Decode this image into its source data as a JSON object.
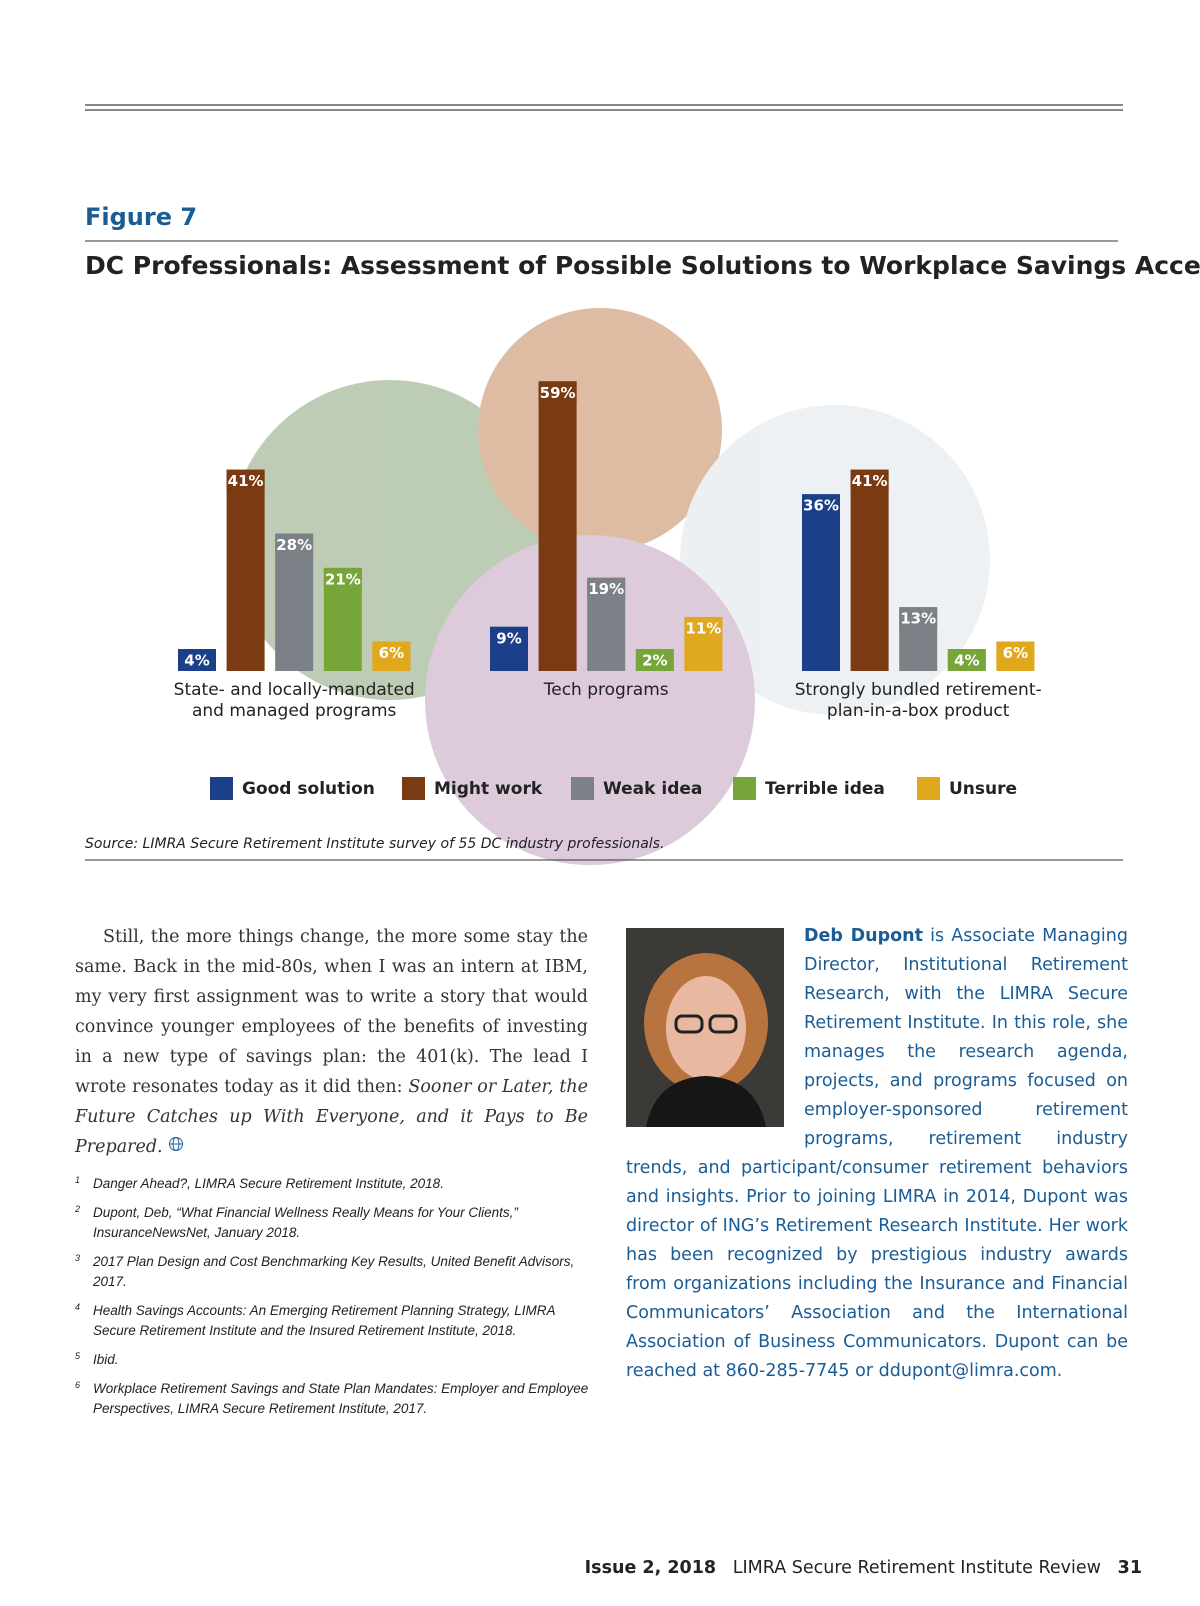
{
  "figure": {
    "label": "Figure 7",
    "source": "Source: LIMRA Secure Retirement Institute survey of 55 DC industry professionals."
  },
  "chart_data": {
    "type": "bar",
    "title": "DC Professionals: Assessment of Possible Solutions to Workplace Savings Access",
    "categories": [
      "State- and locally-mandated and managed programs",
      "Tech programs",
      "Strongly bundled retirement-plan-in-a-box product"
    ],
    "series": [
      {
        "name": "Good solution",
        "color": "#1c3f8a",
        "values": [
          4,
          9,
          36
        ],
        "value_labels": [
          "4%",
          "9%",
          "36%"
        ]
      },
      {
        "name": "Might work",
        "color": "#7a3b12",
        "values": [
          41,
          59,
          41
        ],
        "value_labels": [
          "41%",
          "59%",
          "41%"
        ]
      },
      {
        "name": "Weak idea",
        "color": "#7b8187",
        "values": [
          28,
          19,
          13
        ],
        "value_labels": [
          "28%",
          "19%",
          "13%"
        ]
      },
      {
        "name": "Terrible idea",
        "color": "#76a53a",
        "values": [
          21,
          2,
          4
        ],
        "value_labels": [
          "21%",
          "2%",
          "4%"
        ]
      },
      {
        "name": "Unsure",
        "color": "#e0a81c",
        "values": [
          6,
          11,
          6
        ],
        "value_labels": [
          "6%",
          "11%",
          "6%"
        ]
      }
    ]
  },
  "body": {
    "text": "Still, the more things change, the more some stay the same. Back in the mid-80s, when I was an intern at IBM, my very first assignment was to write a story that would convince younger employees of the benefits of investing in a new type of savings plan: the 401(k). The lead I wrote resonates today as it did then:",
    "quote": "Sooner or Later, the Future Catches up With Everyone, and it Pays to Be Prepared."
  },
  "footnotes": [
    {
      "number": "1",
      "text": "Danger Ahead?, LIMRA Secure Retirement Institute, 2018."
    },
    {
      "number": "2",
      "text": "Dupont, Deb, “What Financial Wellness Really Means for Your Clients,” InsuranceNewsNet, January 2018."
    },
    {
      "number": "3",
      "text": "2017 Plan Design and Cost Benchmarking Key Results, United Benefit Advisors, 2017."
    },
    {
      "number": "4",
      "text": "Health Savings Accounts: An Emerging Retirement Planning Strategy, LIMRA Secure Retirement Institute and the Insured Retirement Institute, 2018."
    },
    {
      "number": "5",
      "text": "Ibid."
    },
    {
      "number": "6",
      "text": "Workplace Retirement Savings and State Plan Mandates: Employer and Employee Perspectives, LIMRA Secure Retirement Institute, 2017."
    }
  ],
  "bio": {
    "name": "Deb Dupont",
    "text": "is Associate Managing Director, Institutional Retirement Research, with the LIMRA Secure Retirement Institute. In this role, she manages the research agenda, projects, and programs focused on employer-sponsored retirement programs, retirement industry trends, and participant/consumer retirement behaviors and insights. Prior to joining LIMRA in 2014, Dupont was director of ING’s Retirement Research Institute. Her work has been recognized by prestigious industry awards from organizations including the Insurance and Financial Communicators’ Association and the International Association of Business Communicators. Dupont can be reached at 860-285-7745 or ddupont@limra.com."
  },
  "footer": {
    "issue": "Issue 2, 2018",
    "publication": "LIMRA Secure Retirement Institute Review",
    "page": "31"
  }
}
